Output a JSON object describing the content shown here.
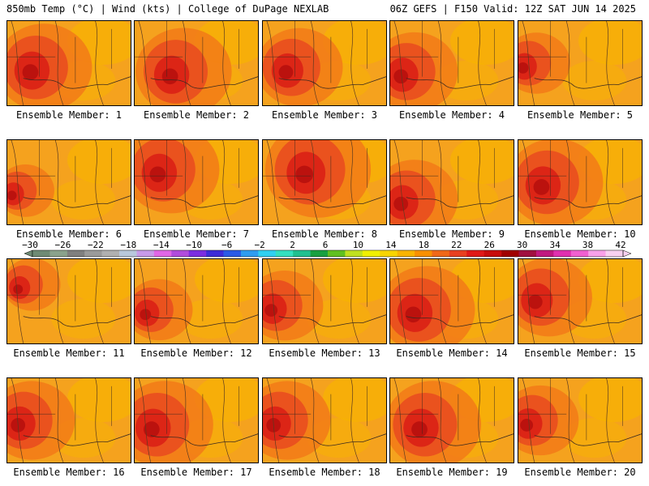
{
  "header": {
    "left": "850mb Temp (°C) | Wind (kts) | College of DuPage NEXLAB",
    "right": "06Z GEFS | F150 Valid: 12Z SAT JUN 14 2025"
  },
  "panels": [
    {
      "label": "Ensemble Member: 1"
    },
    {
      "label": "Ensemble Member: 2"
    },
    {
      "label": "Ensemble Member: 3"
    },
    {
      "label": "Ensemble Member: 4"
    },
    {
      "label": "Ensemble Member: 5"
    },
    {
      "label": "Ensemble Member: 6"
    },
    {
      "label": "Ensemble Member: 7"
    },
    {
      "label": "Ensemble Member: 8"
    },
    {
      "label": "Ensemble Member: 9"
    },
    {
      "label": "Ensemble Member: 10"
    },
    {
      "label": "Ensemble Member: 11"
    },
    {
      "label": "Ensemble Member: 12"
    },
    {
      "label": "Ensemble Member: 13"
    },
    {
      "label": "Ensemble Member: 14"
    },
    {
      "label": "Ensemble Member: 15"
    },
    {
      "label": "Ensemble Member: 16"
    },
    {
      "label": "Ensemble Member: 17"
    },
    {
      "label": "Ensemble Member: 18"
    },
    {
      "label": "Ensemble Member: 19"
    },
    {
      "label": "Ensemble Member: 20"
    }
  ],
  "colorbar": {
    "tick_labels": [
      "−30",
      "−26",
      "−22",
      "−18",
      "−14",
      "−10",
      "−6",
      "−2",
      "2",
      "6",
      "10",
      "14",
      "18",
      "22",
      "26",
      "30",
      "34",
      "38",
      "42"
    ],
    "colors": [
      "#6e8b74",
      "#8aa28c",
      "#7f7f7f",
      "#9a9a9a",
      "#b0b0b0",
      "#b8c8dc",
      "#c79ae8",
      "#e066e6",
      "#b04cdc",
      "#7b2ee0",
      "#3c2cd8",
      "#2a5ae6",
      "#2e9cf0",
      "#30d0f0",
      "#34e0c0",
      "#20c090",
      "#18a040",
      "#60c020",
      "#c0e020",
      "#f0f000",
      "#f8d400",
      "#f8b400",
      "#f89000",
      "#f06818",
      "#e84020",
      "#e01818",
      "#c80c0c",
      "#a00000",
      "#a01040",
      "#c01880",
      "#e030b0",
      "#f060d0",
      "#f8a0e8",
      "#f8d0f0"
    ],
    "colors_note_hidden": ""
  }
}
